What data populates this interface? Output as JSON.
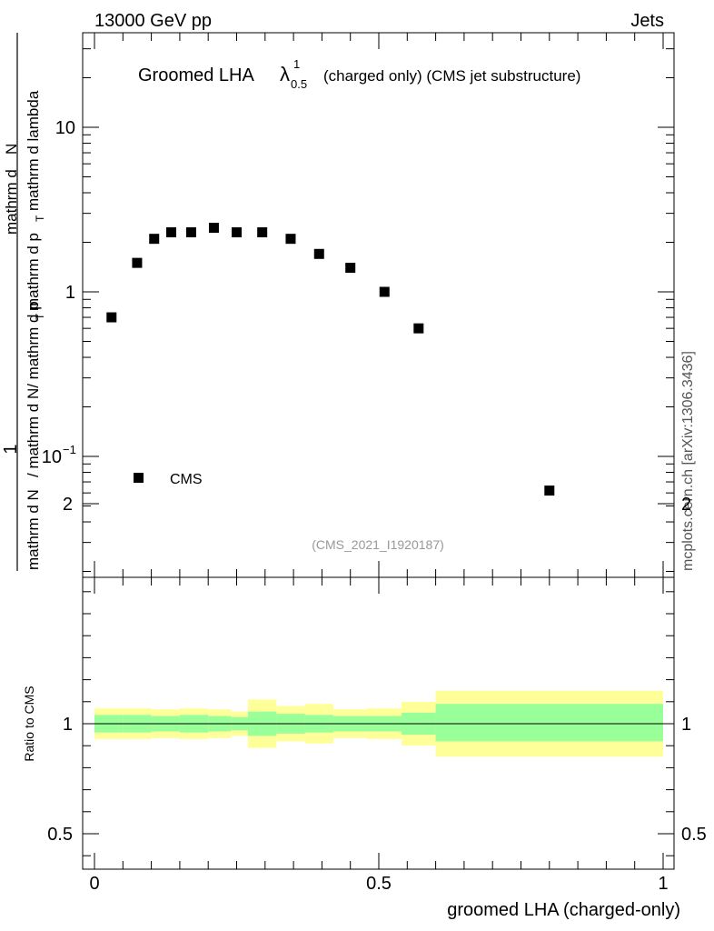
{
  "header": {
    "left": "13000 GeV pp",
    "right": "Jets"
  },
  "side_label": "mcplots.cern.ch [arXiv:1306.3436]",
  "analysis_id": "(CMS_2021_I1920187)",
  "chart_data": [
    {
      "type": "scatter",
      "title": {
        "prefix": "Groomed LHA",
        "symbol": "λ",
        "superscript": "1",
        "subscript": "0.5",
        "suffix": "(charged only) (CMS jet substructure)"
      },
      "ylabel": {
        "numerator": "1",
        "den_part1": "mathrm d N",
        "den_part2": "/ mathrm d N/ mathrm d p",
        "den_sub": "T",
        "den_part3": "mathrm d p",
        "den_part4": "mathrm d lambda",
        "pieces": [
          "mathrm d",
          "N"
        ]
      },
      "y_scale": "log",
      "ylim": [
        0.02,
        40
      ],
      "xlim": [
        -0.02,
        1.0
      ],
      "yticks": [
        {
          "value": 10,
          "label": "10"
        },
        {
          "value": 1,
          "label": "1"
        },
        {
          "value": 0.1,
          "label": "10",
          "exp": "−1"
        }
      ],
      "series": [
        {
          "name": "CMS",
          "marker": "square",
          "color": "#000000",
          "x": [
            0.03,
            0.075,
            0.105,
            0.135,
            0.17,
            0.21,
            0.25,
            0.295,
            0.345,
            0.395,
            0.45,
            0.51,
            0.57,
            0.8
          ],
          "y": [
            0.7,
            1.5,
            2.1,
            2.3,
            2.3,
            2.45,
            2.3,
            2.3,
            2.1,
            1.7,
            1.4,
            1.0,
            0.6,
            0.062
          ]
        }
      ],
      "legend": {
        "placement": "bottom-left",
        "label": "CMS"
      }
    },
    {
      "type": "area",
      "ylabel": "Ratio to CMS",
      "xlabel": "groomed LHA (charged-only)",
      "ylim": [
        0.35,
        2.3
      ],
      "xlim": [
        -0.02,
        1.0
      ],
      "yticks": [
        {
          "value": 2,
          "label": "2"
        },
        {
          "value": 1,
          "label": "1"
        },
        {
          "value": 0.5,
          "label": "0.5"
        }
      ],
      "xticks": [
        {
          "value": 0,
          "label": "0"
        },
        {
          "value": 0.5,
          "label": "0.5"
        },
        {
          "value": 1,
          "label": "1"
        }
      ],
      "reference_line": 1,
      "bands": {
        "edges": [
          0.0,
          0.05,
          0.1,
          0.15,
          0.2,
          0.24,
          0.27,
          0.32,
          0.37,
          0.42,
          0.48,
          0.54,
          0.6,
          1.0
        ],
        "inner": {
          "color": "#99ff99",
          "lo": [
            0.96,
            0.96,
            0.965,
            0.96,
            0.965,
            0.97,
            0.945,
            0.955,
            0.96,
            0.965,
            0.965,
            0.95,
            0.92
          ],
          "hi": [
            1.04,
            1.04,
            1.035,
            1.04,
            1.035,
            1.03,
            1.055,
            1.045,
            1.04,
            1.035,
            1.035,
            1.05,
            1.09
          ]
        },
        "outer": {
          "color": "#ffff99",
          "lo": [
            0.93,
            0.93,
            0.935,
            0.93,
            0.935,
            0.945,
            0.89,
            0.92,
            0.91,
            0.935,
            0.93,
            0.9,
            0.85
          ],
          "hi": [
            1.07,
            1.07,
            1.065,
            1.07,
            1.065,
            1.055,
            1.11,
            1.08,
            1.09,
            1.065,
            1.07,
            1.1,
            1.15
          ]
        }
      }
    }
  ]
}
